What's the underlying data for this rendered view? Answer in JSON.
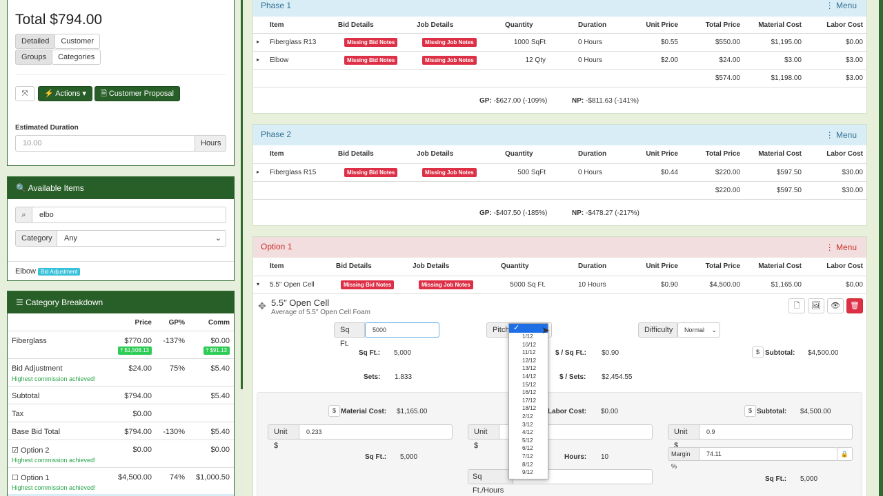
{
  "sidebar": {
    "total": "Total $794.00",
    "toggles": [
      [
        "Detailed",
        "Customer"
      ],
      [
        "Groups",
        "Categories"
      ]
    ],
    "expand_icon": "expand-icon",
    "actions_label": "Actions",
    "proposal_label": "Customer Proposal",
    "est_duration_label": "Estimated Duration",
    "est_duration_placeholder": "10.00",
    "hours_addon": "Hours",
    "available_items": {
      "title": "Available Items",
      "search_value": "elbo",
      "category_label": "Category",
      "category_value": "Any",
      "result_name": "Elbow",
      "result_badge": "Bid Adjustment"
    },
    "category_breakdown": {
      "title": "Category Breakdown",
      "headers": [
        "Price",
        "GP%",
        "Comm"
      ],
      "rows": [
        {
          "name": "Fiberglass",
          "price": "$770.00",
          "gp": "-137%",
          "comm": "$0.00",
          "badge1": "$1,508.13",
          "badge2": "$91.13"
        },
        {
          "name": "Bid Adjustment",
          "note": "Highest commission achieved!",
          "price": "$24.00",
          "gp": "75%",
          "comm": "$5.40"
        },
        {
          "name": "Subtotal",
          "price": "$794.00",
          "gp": "",
          "comm": "$5.40"
        },
        {
          "name": "Tax",
          "price": "$0.00",
          "gp": "",
          "comm": ""
        },
        {
          "name": "Base Bid Total",
          "price": "$794.00",
          "gp": "-130%",
          "comm": "$5.40"
        },
        {
          "name": "Option 2",
          "note": "Highest commission achieved!",
          "price": "$0.00",
          "gp": "",
          "comm": "$0.00",
          "checked": "☑"
        },
        {
          "name": "Option 1",
          "note": "Highest commission achieved!",
          "price": "$4,500.00",
          "gp": "74%",
          "comm": "$1,000.50",
          "checked": "☐"
        }
      ]
    }
  },
  "table_headers": [
    "Item",
    "Bid Details",
    "Job Details",
    "Quantity",
    "Duration",
    "Unit Price",
    "Total Price",
    "Material Cost",
    "Labor Cost"
  ],
  "badges": {
    "bid": "Missing Bid Notes",
    "job": "Missing Job Notes"
  },
  "menu_label": "Menu",
  "phase1": {
    "title": "Phase 1",
    "rows": [
      {
        "item": "Fiberglass R13",
        "qty": "1000 SqFt",
        "dur": "0 Hours",
        "unit": "$0.55",
        "total": "$550.00",
        "mat": "$1,195.00",
        "labor": "$0.00"
      },
      {
        "item": "Elbow",
        "qty": "12 Qty",
        "dur": "0 Hours",
        "unit": "$2.00",
        "total": "$24.00",
        "mat": "$3.00",
        "labor": "$3.00"
      }
    ],
    "totals": {
      "total": "$574.00",
      "mat": "$1,198.00",
      "labor": "$3.00"
    },
    "gp_label": "GP:",
    "gp": "-$627.00 (-109%)",
    "np_label": "NP:",
    "np": "-$811.63 (-141%)"
  },
  "phase2": {
    "title": "Phase 2",
    "rows": [
      {
        "item": "Fiberglass R15",
        "qty": "500 SqFt",
        "dur": "0 Hours",
        "unit": "$0.44",
        "total": "$220.00",
        "mat": "$597.50",
        "labor": "$30.00"
      }
    ],
    "totals": {
      "total": "$220.00",
      "mat": "$597.50",
      "labor": "$30.00"
    },
    "gp_label": "GP:",
    "gp": "-$407.50 (-185%)",
    "np_label": "NP:",
    "np": "-$478.27 (-217%)"
  },
  "option1": {
    "title": "Option 1",
    "row": {
      "item": "5.5\" Open Cell",
      "qty": "5000 Sq Ft.",
      "dur": "10 Hours",
      "unit": "$0.90",
      "total": "$4,500.00",
      "mat": "$1,165.00",
      "labor": "$0.00"
    },
    "detail": {
      "name": "5.5\" Open Cell",
      "desc": "Average of 5.5\" Open Cell Foam",
      "sqft_label": "Sq Ft.",
      "sqft_value": "5000",
      "pitch_label": "Pitch",
      "difficulty_label": "Difficulty",
      "difficulty_value": "Normal",
      "sqft_calc_label": "Sq Ft.:",
      "sqft_calc": "5,000",
      "sets_label": "Sets:",
      "sets": "1.833",
      "per_sqft_label": "$ / Sq Ft.:",
      "per_sqft": "$0.90",
      "per_sets_label": "$ / Sets:",
      "per_sets": "$2,454.55",
      "subtotal_label": "Subtotal:",
      "subtotal": "$4,500.00",
      "material_label": "Material Cost:",
      "material": "$1,165.00",
      "labor_label": "Labor Cost:",
      "labor": "$0.00",
      "subtotal2_label": "Subtotal:",
      "subtotal2": "$4,500.00",
      "unit_label": "Unit $",
      "unit_mat": "0.233",
      "unit_price": "0.9",
      "margin_label": "Margin %",
      "margin": "74.11",
      "sqft2_label": "Sq Ft.:",
      "sqft2": "5,000",
      "hours_label": "Hours:",
      "hours": "10",
      "sqft_hours_label": "Sq Ft./Hours",
      "sqft3_label": "Sq Ft.:",
      "sqft3": "5,000"
    }
  },
  "pitch_dropdown": {
    "selected": "✓",
    "options": [
      "1/12",
      "10/12",
      "11/12",
      "12/12",
      "13/12",
      "14/12",
      "15/12",
      "16/12",
      "17/12",
      "18/12",
      "2/12",
      "3/12",
      "4/12",
      "5/12",
      "6/12",
      "7/12",
      "8/12",
      "9/12"
    ]
  }
}
